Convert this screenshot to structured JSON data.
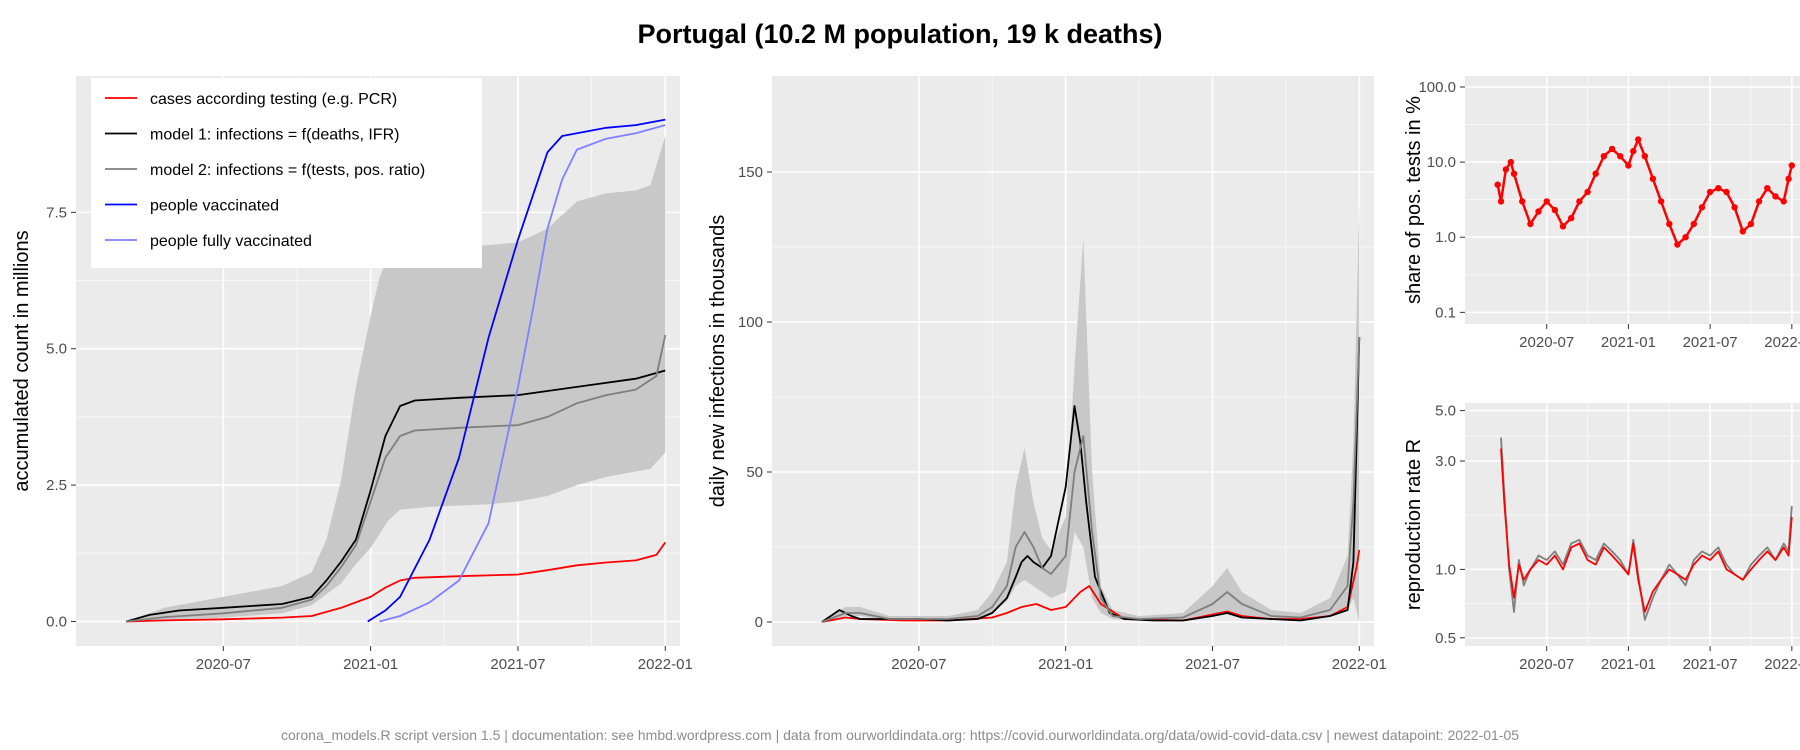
{
  "title": "Portugal (10.2 M population, 19 k deaths)",
  "footer": "corona_models.R script version 1.5 | documentation: see hmbd.wordpress.com | data from ourworldindata.org: https://covid.ourworldindata.org/data/owid-covid-data.csv | newest datapoint: 2022-01-05",
  "colors": {
    "cases": "#ff0000",
    "model1": "#000000",
    "model2": "#7f7f7f",
    "vaccinated": "#0000ff",
    "fully_vaccinated": "#7f7fff",
    "band": "#c8c8c8",
    "panel_bg": "#ebebeb"
  },
  "chart_data": [
    {
      "id": "accumulated",
      "type": "line",
      "title": "",
      "xlabel": "",
      "ylabel": "accumulated count in millions",
      "x_ticks": [
        "2020-07",
        "2021-01",
        "2021-07",
        "2022-01"
      ],
      "x_tick_values": [
        2020.5,
        2021.0,
        2021.5,
        2022.0
      ],
      "y_ticks": [
        "0.0",
        "2.5",
        "5.0",
        "7.5"
      ],
      "y_tick_values": [
        0,
        2.5,
        5.0,
        7.5
      ],
      "xlim": [
        2020.0,
        2022.05
      ],
      "ylim": [
        -0.45,
        10.0
      ],
      "legend_position": "top-left",
      "legend": [
        {
          "label": "cases according testing (e.g. PCR)",
          "color": "#ff0000"
        },
        {
          "label": "model 1: infections = f(deaths, IFR)",
          "color": "#000000"
        },
        {
          "label": "model 2: infections = f(tests, pos. ratio)",
          "color": "#7f7f7f"
        },
        {
          "label": "people vaccinated",
          "color": "#0000ff"
        },
        {
          "label": "people fully vaccinated",
          "color": "#7f7fff"
        }
      ],
      "band": {
        "x": [
          2020.17,
          2020.3,
          2020.5,
          2020.7,
          2020.8,
          2020.85,
          2020.9,
          2020.95,
          2021.0,
          2021.03,
          2021.06,
          2021.1,
          2021.2,
          2021.4,
          2021.5,
          2021.6,
          2021.7,
          2021.8,
          2021.9,
          2021.95,
          2022.0
        ],
        "lower": [
          0,
          0.03,
          0.07,
          0.15,
          0.3,
          0.5,
          0.7,
          1.05,
          1.35,
          1.6,
          1.85,
          2.05,
          2.1,
          2.15,
          2.2,
          2.3,
          2.5,
          2.65,
          2.75,
          2.8,
          3.1
        ],
        "upper": [
          0,
          0.25,
          0.45,
          0.65,
          0.9,
          1.5,
          2.6,
          4.3,
          5.6,
          6.3,
          6.7,
          6.8,
          6.85,
          6.9,
          6.95,
          7.2,
          7.7,
          7.85,
          7.9,
          8.0,
          8.9
        ]
      },
      "series": [
        {
          "name": "cases according testing (e.g. PCR)",
          "color": "#ff0000",
          "x": [
            2020.17,
            2020.3,
            2020.5,
            2020.7,
            2020.8,
            2020.9,
            2021.0,
            2021.05,
            2021.1,
            2021.15,
            2021.3,
            2021.5,
            2021.6,
            2021.7,
            2021.8,
            2021.9,
            2021.97,
            2022.0
          ],
          "y": [
            0,
            0.02,
            0.04,
            0.07,
            0.1,
            0.25,
            0.45,
            0.62,
            0.75,
            0.8,
            0.83,
            0.86,
            0.94,
            1.03,
            1.08,
            1.12,
            1.22,
            1.45
          ]
        },
        {
          "name": "model 1: infections = f(deaths, IFR)",
          "color": "#000000",
          "x": [
            2020.17,
            2020.25,
            2020.35,
            2020.5,
            2020.7,
            2020.8,
            2020.85,
            2020.9,
            2020.95,
            2021.0,
            2021.05,
            2021.1,
            2021.15,
            2021.3,
            2021.5,
            2021.7,
            2021.9,
            2022.0
          ],
          "y": [
            0,
            0.12,
            0.2,
            0.25,
            0.32,
            0.45,
            0.75,
            1.1,
            1.5,
            2.4,
            3.4,
            3.95,
            4.05,
            4.1,
            4.15,
            4.3,
            4.45,
            4.6
          ]
        },
        {
          "name": "model 2: infections = f(tests, pos. ratio)",
          "color": "#7f7f7f",
          "x": [
            2020.17,
            2020.3,
            2020.5,
            2020.7,
            2020.8,
            2020.85,
            2020.9,
            2020.95,
            2021.0,
            2021.05,
            2021.1,
            2021.15,
            2021.3,
            2021.5,
            2021.6,
            2021.7,
            2021.8,
            2021.9,
            2021.97,
            2022.0
          ],
          "y": [
            0,
            0.08,
            0.15,
            0.25,
            0.4,
            0.65,
            1.0,
            1.4,
            2.2,
            3.0,
            3.4,
            3.5,
            3.55,
            3.6,
            3.75,
            4.0,
            4.15,
            4.25,
            4.5,
            5.25
          ]
        },
        {
          "name": "people vaccinated",
          "color": "#0000ff",
          "x": [
            2020.99,
            2021.05,
            2021.1,
            2021.2,
            2021.3,
            2021.4,
            2021.5,
            2021.6,
            2021.65,
            2021.7,
            2021.8,
            2021.9,
            2022.0
          ],
          "y": [
            0,
            0.2,
            0.45,
            1.5,
            3.0,
            5.2,
            7.0,
            8.6,
            8.9,
            8.95,
            9.05,
            9.1,
            9.2
          ]
        },
        {
          "name": "people fully vaccinated",
          "color": "#7f7fff",
          "x": [
            2021.03,
            2021.1,
            2021.2,
            2021.3,
            2021.4,
            2021.5,
            2021.55,
            2021.6,
            2021.65,
            2021.7,
            2021.8,
            2021.9,
            2022.0
          ],
          "y": [
            0,
            0.1,
            0.35,
            0.75,
            1.8,
            4.3,
            5.7,
            7.2,
            8.1,
            8.65,
            8.85,
            8.95,
            9.1
          ]
        }
      ]
    },
    {
      "id": "daily",
      "type": "line",
      "title": "",
      "xlabel": "",
      "ylabel": "daily new infections in thousands",
      "x_ticks": [
        "2020-07",
        "2021-01",
        "2021-07",
        "2022-01"
      ],
      "x_tick_values": [
        2020.5,
        2021.0,
        2021.5,
        2022.0
      ],
      "y_ticks": [
        "0",
        "50",
        "100",
        "150"
      ],
      "y_tick_values": [
        0,
        50,
        100,
        150
      ],
      "xlim": [
        2020.0,
        2022.05
      ],
      "ylim": [
        -8,
        182
      ],
      "band": {
        "x": [
          2020.17,
          2020.25,
          2020.3,
          2020.4,
          2020.5,
          2020.6,
          2020.7,
          2020.75,
          2020.8,
          2020.83,
          2020.86,
          2020.89,
          2020.92,
          2020.95,
          2021.0,
          2021.03,
          2021.06,
          2021.09,
          2021.12,
          2021.16,
          2021.25,
          2021.4,
          2021.5,
          2021.55,
          2021.6,
          2021.7,
          2021.8,
          2021.9,
          2021.96,
          2021.98,
          2022.0
        ],
        "lower": [
          0,
          2,
          2,
          0.5,
          0.5,
          0.5,
          1,
          3,
          7,
          12,
          14,
          12,
          10,
          8,
          10,
          30,
          25,
          8,
          3,
          1,
          0.5,
          0.5,
          2,
          3,
          2,
          1,
          1,
          2,
          4,
          8,
          0
        ],
        "upper": [
          0,
          5,
          5,
          2,
          2,
          2,
          4,
          10,
          20,
          45,
          58,
          40,
          28,
          24,
          35,
          85,
          128,
          50,
          12,
          4,
          2,
          3,
          12,
          18,
          10,
          4,
          3,
          8,
          22,
          60,
          140
        ]
      },
      "series": [
        {
          "name": "cases according testing (e.g. PCR)",
          "color": "#ff0000",
          "x": [
            2020.17,
            2020.25,
            2020.3,
            2020.45,
            2020.6,
            2020.75,
            2020.8,
            2020.85,
            2020.9,
            2020.95,
            2021.0,
            2021.05,
            2021.08,
            2021.12,
            2021.2,
            2021.4,
            2021.5,
            2021.55,
            2021.6,
            2021.7,
            2021.8,
            2021.9,
            2021.96,
            2021.99,
            2022.0
          ],
          "y": [
            0,
            1.5,
            1,
            0.5,
            0.5,
            1.5,
            3,
            5,
            6,
            4,
            5,
            10,
            12,
            6,
            1,
            0.5,
            2.5,
            3.5,
            2,
            1,
            1,
            2,
            5,
            18,
            24
          ]
        },
        {
          "name": "model 1: infections = f(deaths, IFR)",
          "color": "#000000",
          "x": [
            2020.17,
            2020.2,
            2020.23,
            2020.27,
            2020.3,
            2020.4,
            2020.5,
            2020.6,
            2020.7,
            2020.75,
            2020.8,
            2020.83,
            2020.85,
            2020.87,
            2020.89,
            2020.92,
            2020.95,
            2021.0,
            2021.03,
            2021.05,
            2021.07,
            2021.1,
            2021.15,
            2021.2,
            2021.3,
            2021.4,
            2021.5,
            2021.55,
            2021.6,
            2021.7,
            2021.8,
            2021.9,
            2021.96,
            2021.98,
            2022.0
          ],
          "y": [
            0,
            2,
            4,
            2,
            1,
            1,
            1,
            0.5,
            1,
            3,
            8,
            15,
            20,
            22,
            20,
            18,
            22,
            45,
            72,
            60,
            40,
            15,
            3,
            1,
            0.5,
            0.5,
            2,
            3,
            1.5,
            1,
            0.5,
            2,
            4,
            20,
            95
          ]
        },
        {
          "name": "model 2: infections = f(tests, pos. ratio)",
          "color": "#7f7f7f",
          "x": [
            2020.17,
            2020.25,
            2020.3,
            2020.4,
            2020.5,
            2020.6,
            2020.7,
            2020.75,
            2020.8,
            2020.83,
            2020.86,
            2020.89,
            2020.92,
            2020.95,
            2021.0,
            2021.03,
            2021.06,
            2021.09,
            2021.12,
            2021.16,
            2021.25,
            2021.4,
            2021.5,
            2021.55,
            2021.6,
            2021.7,
            2021.8,
            2021.9,
            2021.96,
            2021.98,
            2022.0
          ],
          "y": [
            0,
            3,
            3,
            1,
            1,
            1,
            2,
            5,
            12,
            25,
            30,
            25,
            18,
            16,
            22,
            50,
            62,
            30,
            8,
            2,
            1,
            1.5,
            6,
            10,
            6,
            2,
            1.5,
            4,
            12,
            40,
            95
          ]
        }
      ]
    },
    {
      "id": "positive-share",
      "type": "scatter",
      "title": "",
      "xlabel": "",
      "ylabel": "share of pos. tests in %",
      "y_scale": "log",
      "x_ticks": [
        "2020-07",
        "2021-01",
        "2021-07",
        "2022-01"
      ],
      "x_tick_values": [
        2020.5,
        2021.0,
        2021.5,
        2022.0
      ],
      "y_ticks": [
        "0.1",
        "1.0",
        "10.0",
        "100.0"
      ],
      "y_tick_values": [
        0.1,
        1.0,
        10.0,
        100.0
      ],
      "xlim": [
        2020.0,
        2022.05
      ],
      "ylim": [
        0.07,
        140
      ],
      "series": [
        {
          "name": "",
          "color": "#ff0000",
          "x": [
            2020.2,
            2020.22,
            2020.25,
            2020.28,
            2020.3,
            2020.35,
            2020.4,
            2020.45,
            2020.5,
            2020.55,
            2020.6,
            2020.65,
            2020.7,
            2020.75,
            2020.8,
            2020.85,
            2020.9,
            2020.95,
            2021.0,
            2021.03,
            2021.06,
            2021.1,
            2021.15,
            2021.2,
            2021.25,
            2021.3,
            2021.35,
            2021.4,
            2021.45,
            2021.5,
            2021.55,
            2021.6,
            2021.65,
            2021.7,
            2021.75,
            2021.8,
            2021.85,
            2021.9,
            2021.95,
            2021.98,
            2022.0
          ],
          "y": [
            5,
            3,
            8,
            10,
            7,
            3,
            1.5,
            2.2,
            3,
            2.3,
            1.4,
            1.8,
            3,
            4,
            7,
            12,
            15,
            12,
            9,
            14,
            20,
            12,
            6,
            3,
            1.5,
            0.8,
            1.0,
            1.5,
            2.5,
            4,
            4.5,
            4,
            2.5,
            1.2,
            1.5,
            3,
            4.5,
            3.5,
            3,
            6,
            9
          ]
        }
      ]
    },
    {
      "id": "reproduction",
      "type": "line",
      "title": "",
      "xlabel": "",
      "ylabel": "reproduction rate R",
      "y_scale": "log",
      "x_ticks": [
        "2020-07",
        "2021-01",
        "2021-07",
        "2022-01"
      ],
      "x_tick_values": [
        2020.5,
        2021.0,
        2021.5,
        2022.0
      ],
      "y_ticks": [
        "0.5",
        "1.0",
        "3.0",
        "5.0"
      ],
      "y_tick_values": [
        0.5,
        1.0,
        3.0,
        5.0
      ],
      "xlim": [
        2020.0,
        2022.05
      ],
      "ylim": [
        0.46,
        5.4
      ],
      "series": [
        {
          "name": "",
          "color": "#7f7f7f",
          "x": [
            2020.22,
            2020.24,
            2020.27,
            2020.3,
            2020.33,
            2020.36,
            2020.4,
            2020.45,
            2020.5,
            2020.55,
            2020.6,
            2020.65,
            2020.7,
            2020.75,
            2020.8,
            2020.85,
            2020.9,
            2020.95,
            2021.0,
            2021.03,
            2021.06,
            2021.1,
            2021.15,
            2021.2,
            2021.25,
            2021.3,
            2021.35,
            2021.4,
            2021.45,
            2021.5,
            2021.55,
            2021.6,
            2021.65,
            2021.7,
            2021.75,
            2021.8,
            2021.85,
            2021.9,
            2021.95,
            2021.98,
            2022.0
          ],
          "y": [
            3.8,
            2.2,
            1.0,
            0.65,
            1.1,
            0.85,
            1.0,
            1.15,
            1.1,
            1.2,
            1.05,
            1.3,
            1.35,
            1.15,
            1.1,
            1.3,
            1.2,
            1.1,
            0.95,
            1.35,
            0.95,
            0.6,
            0.75,
            0.9,
            1.05,
            0.95,
            0.85,
            1.1,
            1.2,
            1.15,
            1.25,
            1.05,
            0.95,
            0.9,
            1.05,
            1.15,
            1.25,
            1.1,
            1.3,
            1.2,
            1.9
          ]
        },
        {
          "name": "",
          "color": "#ff0000",
          "x": [
            2020.22,
            2020.24,
            2020.27,
            2020.3,
            2020.33,
            2020.36,
            2020.4,
            2020.45,
            2020.5,
            2020.55,
            2020.6,
            2020.65,
            2020.7,
            2020.75,
            2020.8,
            2020.85,
            2020.9,
            2020.95,
            2021.0,
            2021.03,
            2021.06,
            2021.1,
            2021.15,
            2021.2,
            2021.25,
            2021.3,
            2021.35,
            2021.4,
            2021.45,
            2021.5,
            2021.55,
            2021.6,
            2021.65,
            2021.7,
            2021.75,
            2021.8,
            2021.85,
            2021.9,
            2021.95,
            2021.98,
            2022.0
          ],
          "y": [
            3.4,
            2.0,
            1.05,
            0.75,
            1.05,
            0.9,
            1.0,
            1.1,
            1.05,
            1.15,
            1.0,
            1.25,
            1.3,
            1.1,
            1.05,
            1.25,
            1.15,
            1.05,
            0.95,
            1.3,
            0.9,
            0.65,
            0.8,
            0.9,
            1.0,
            0.95,
            0.9,
            1.05,
            1.15,
            1.1,
            1.2,
            1.0,
            0.95,
            0.9,
            1.0,
            1.1,
            1.2,
            1.1,
            1.25,
            1.15,
            1.7
          ]
        }
      ]
    }
  ]
}
